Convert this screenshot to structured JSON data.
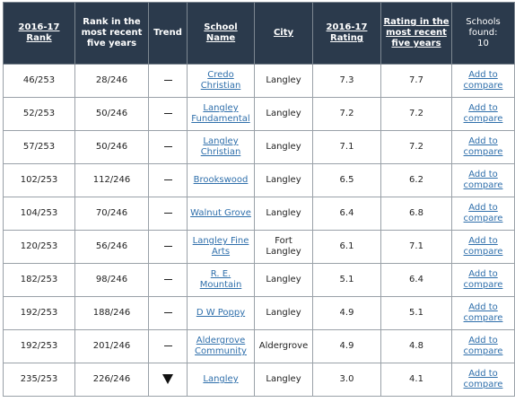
{
  "headers": {
    "rank": "2016-17 Rank",
    "rank5": "Rank in the most recent five years",
    "trend": "Trend",
    "school": "School Name",
    "city": "City",
    "rating": "2016-17 Rating",
    "rating5": "Rating in the most recent five years",
    "found_label": "Schools found:",
    "found_count": "10"
  },
  "compare_label": "Add to compare",
  "rows": [
    {
      "rank": "46/253",
      "rank5": "28/246",
      "trend": "dash",
      "school": "Credo Christian",
      "city": "Langley",
      "rating": "7.3",
      "rating5": "7.7"
    },
    {
      "rank": "52/253",
      "rank5": "50/246",
      "trend": "dash",
      "school": "Langley Fundamental",
      "city": "Langley",
      "rating": "7.2",
      "rating5": "7.2"
    },
    {
      "rank": "57/253",
      "rank5": "50/246",
      "trend": "dash",
      "school": "Langley Christian",
      "city": "Langley",
      "rating": "7.1",
      "rating5": "7.2"
    },
    {
      "rank": "102/253",
      "rank5": "112/246",
      "trend": "dash",
      "school": "Brookswood",
      "city": "Langley",
      "rating": "6.5",
      "rating5": "6.2"
    },
    {
      "rank": "104/253",
      "rank5": "70/246",
      "trend": "dash",
      "school": "Walnut Grove",
      "city": "Langley",
      "rating": "6.4",
      "rating5": "6.8"
    },
    {
      "rank": "120/253",
      "rank5": "56/246",
      "trend": "dash",
      "school": "Langley Fine Arts",
      "city": "Fort Langley",
      "rating": "6.1",
      "rating5": "7.1"
    },
    {
      "rank": "182/253",
      "rank5": "98/246",
      "trend": "dash",
      "school": "R. E. Mountain",
      "city": "Langley",
      "rating": "5.1",
      "rating5": "6.4"
    },
    {
      "rank": "192/253",
      "rank5": "188/246",
      "trend": "dash",
      "school": "D W Poppy",
      "city": "Langley",
      "rating": "4.9",
      "rating5": "5.1"
    },
    {
      "rank": "192/253",
      "rank5": "201/246",
      "trend": "dash",
      "school": "Aldergrove Community",
      "city": "Aldergrove",
      "rating": "4.9",
      "rating5": "4.8"
    },
    {
      "rank": "235/253",
      "rank5": "226/246",
      "trend": "down-arrow",
      "school": "Langley",
      "city": "Langley",
      "rating": "3.0",
      "rating5": "4.1"
    }
  ]
}
